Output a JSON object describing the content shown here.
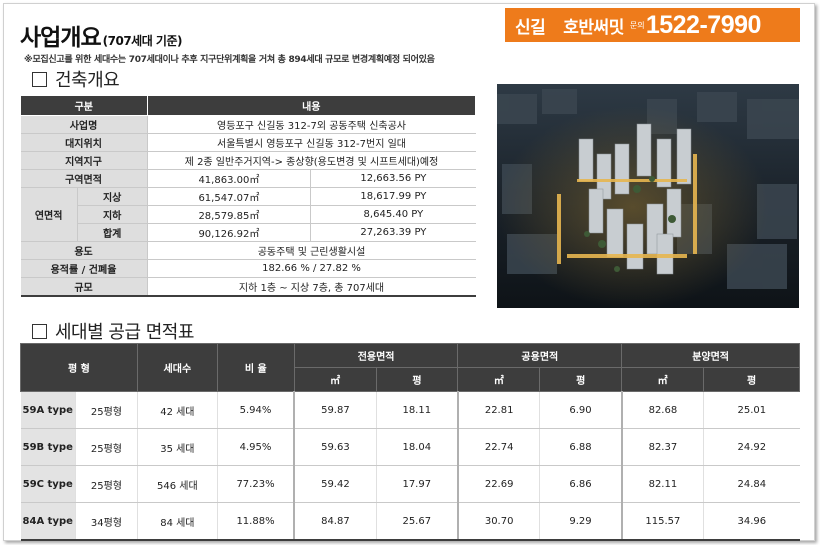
{
  "header": {
    "title": "사업개요",
    "title_sub": "(707세대 기준)",
    "note": "※모집신고를 위한 세대수는 707세대이나 추후 지구단위계획을 거쳐 총 894세대 규모로 변경계획예정 되어있음"
  },
  "badge": {
    "location": "신길",
    "brand": "호반써밋",
    "ask": "문의",
    "phone": "1522-7990",
    "color": "#ee7b1b"
  },
  "overview": {
    "section_title": "건축개요",
    "headers": [
      "구분",
      "내용"
    ],
    "rows": {
      "project_name": {
        "label": "사업명",
        "value": "영등포구 신길동 312-7외 공동주택 신축공사"
      },
      "site_location": {
        "label": "대지위치",
        "value": "서울특별시 영등포구 신길동 312-7번지 일대"
      },
      "zone": {
        "label": "지역지구",
        "value": "제 2종 일반주거지역-> 종상향(용도변경 및 시프트세대)예정"
      },
      "zone_area": {
        "label": "구역면적",
        "m2": "41,863.00㎡",
        "py": "12,663.56 PY"
      },
      "floor_area": {
        "label": "연면적",
        "above": {
          "label": "지상",
          "m2": "61,547.07㎡",
          "py": "18,617.99 PY"
        },
        "below": {
          "label": "지하",
          "m2": "28,579.85㎡",
          "py": "8,645.40 PY"
        },
        "total": {
          "label": "합계",
          "m2": "90,126.92㎡",
          "py": "27,263.39 PY"
        }
      },
      "usage": {
        "label": "용도",
        "value": "공동주택 및 근린생활시설"
      },
      "ratio": {
        "label": "용적률 / 건폐율",
        "value": "182.66 % / 27.82 %"
      },
      "scale": {
        "label": "규모",
        "value": "지하 1층 ~ 지상 7층, 총 707세대"
      }
    }
  },
  "supply": {
    "section_title": "세대별 공급 면적표",
    "headers": {
      "type": "평 형",
      "units": "세대수",
      "ratio": "비 율",
      "exclusive": "전용면적",
      "common": "공용면적",
      "sale": "분양면적",
      "m2": "㎡",
      "py": "평"
    },
    "rows": [
      {
        "type": "59A type",
        "pyeong": "25평형",
        "units": "42 세대",
        "ratio": "5.94%",
        "ex_m2": "59.87",
        "ex_py": "18.11",
        "co_m2": "22.81",
        "co_py": "6.90",
        "sa_m2": "82.68",
        "sa_py": "25.01"
      },
      {
        "type": "59B type",
        "pyeong": "25평형",
        "units": "35 세대",
        "ratio": "4.95%",
        "ex_m2": "59.63",
        "ex_py": "18.04",
        "co_m2": "22.74",
        "co_py": "6.88",
        "sa_m2": "82.37",
        "sa_py": "24.92"
      },
      {
        "type": "59C type",
        "pyeong": "25평형",
        "units": "546 세대",
        "ratio": "77.23%",
        "ex_m2": "59.42",
        "ex_py": "17.97",
        "co_m2": "22.69",
        "co_py": "6.86",
        "sa_m2": "82.11",
        "sa_py": "24.84"
      },
      {
        "type": "84A type",
        "pyeong": "34평형",
        "units": "84 세대",
        "ratio": "11.88%",
        "ex_m2": "84.87",
        "ex_py": "25.67",
        "co_m2": "30.70",
        "co_py": "9.29",
        "sa_m2": "115.57",
        "sa_py": "34.96"
      }
    ]
  }
}
